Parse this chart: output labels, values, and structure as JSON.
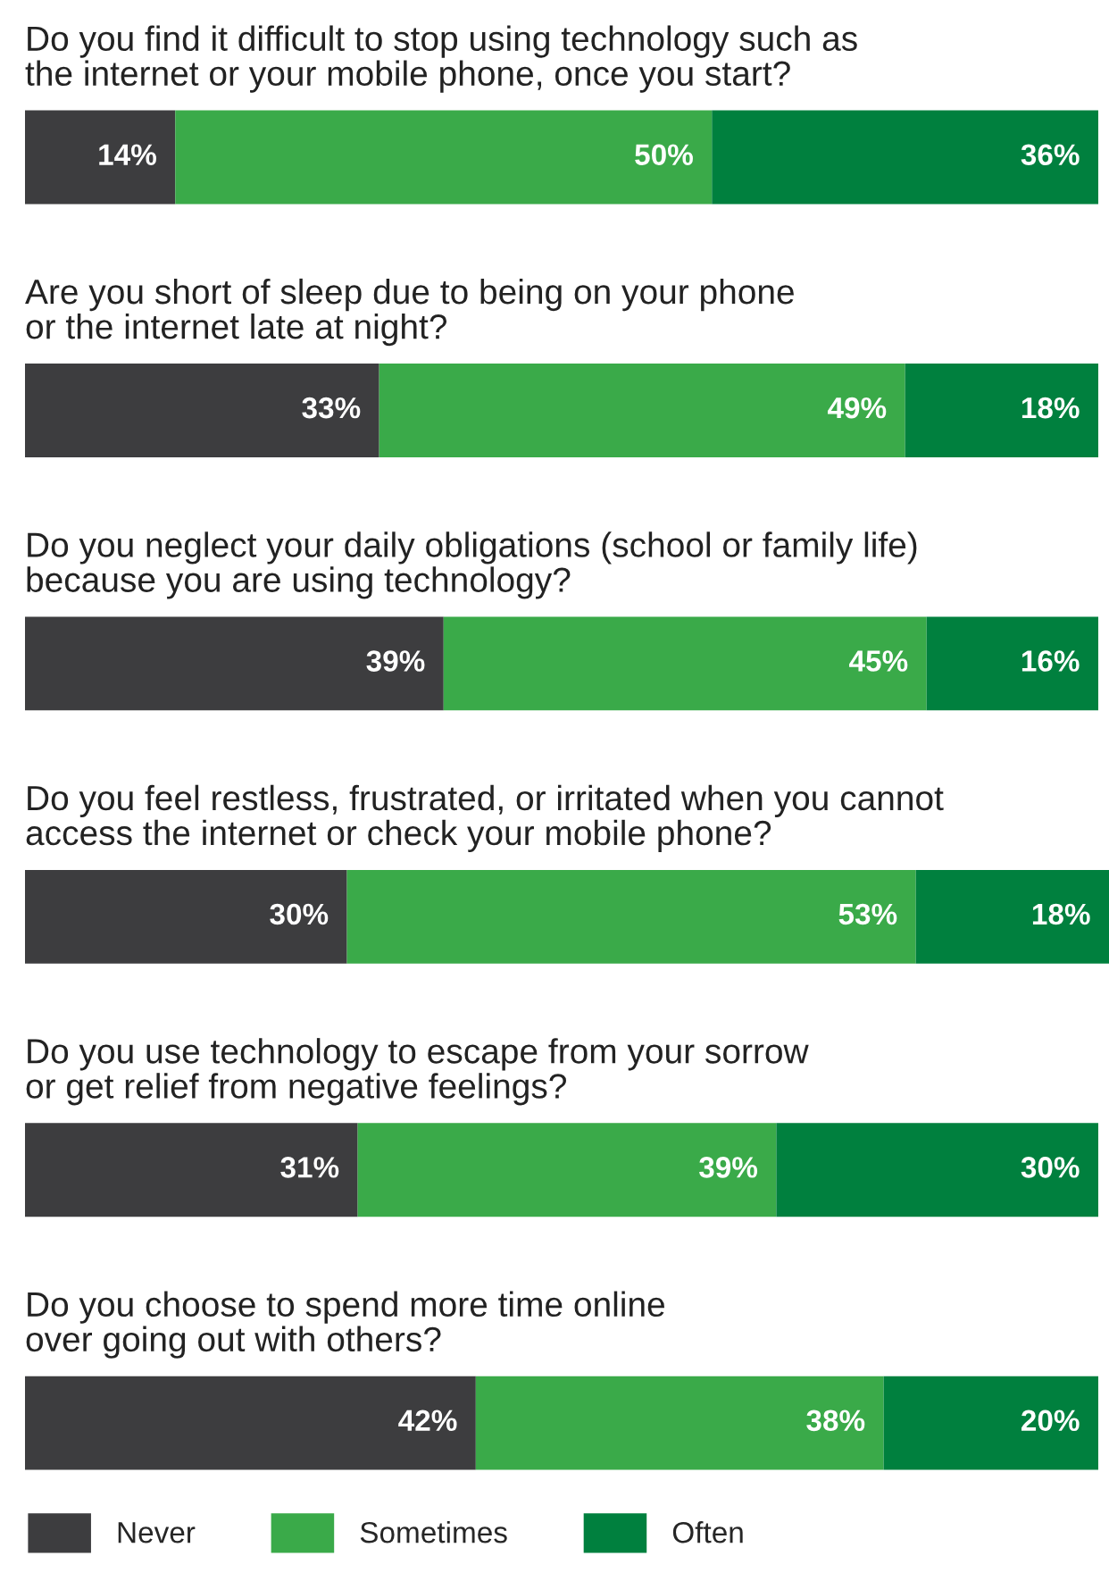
{
  "chart_data": {
    "type": "bar",
    "orientation": "horizontal",
    "stacked": true,
    "legend": "bottom left",
    "categories": [
      "Do you find it difficult to stop using technology such as\nthe internet or your mobile phone, once you start?",
      "Are you short of sleep due to being on your phone\nor the internet late at night?",
      "Do you neglect your daily obligations (school or family life)\nbecause you are using technology?",
      "Do you feel restless, frustrated, or irritated when you cannot\naccess the internet or check your mobile phone?",
      "Do you use technology to escape from your sorrow\nor get relief from negative feelings?",
      "Do you choose to spend more time online\nover going out with others?"
    ],
    "series": [
      {
        "name": "Never",
        "color": "#3d3d3f",
        "values": [
          14,
          33,
          39,
          30,
          31,
          42
        ],
        "value_labels": [
          "14%",
          "33%",
          "39%",
          "30%",
          "31%",
          "42%"
        ]
      },
      {
        "name": "Sometimes",
        "color": "#3aaa49",
        "values": [
          50,
          49,
          45,
          53,
          39,
          38
        ],
        "value_labels": [
          "50%",
          "49%",
          "45%",
          "53%",
          "39%",
          "38%"
        ]
      },
      {
        "name": "Often",
        "color": "#00803e",
        "values": [
          36,
          18,
          16,
          18,
          30,
          20
        ],
        "value_labels": [
          "36%",
          "18%",
          "16%",
          "18%",
          "30%",
          "20%"
        ]
      }
    ]
  }
}
